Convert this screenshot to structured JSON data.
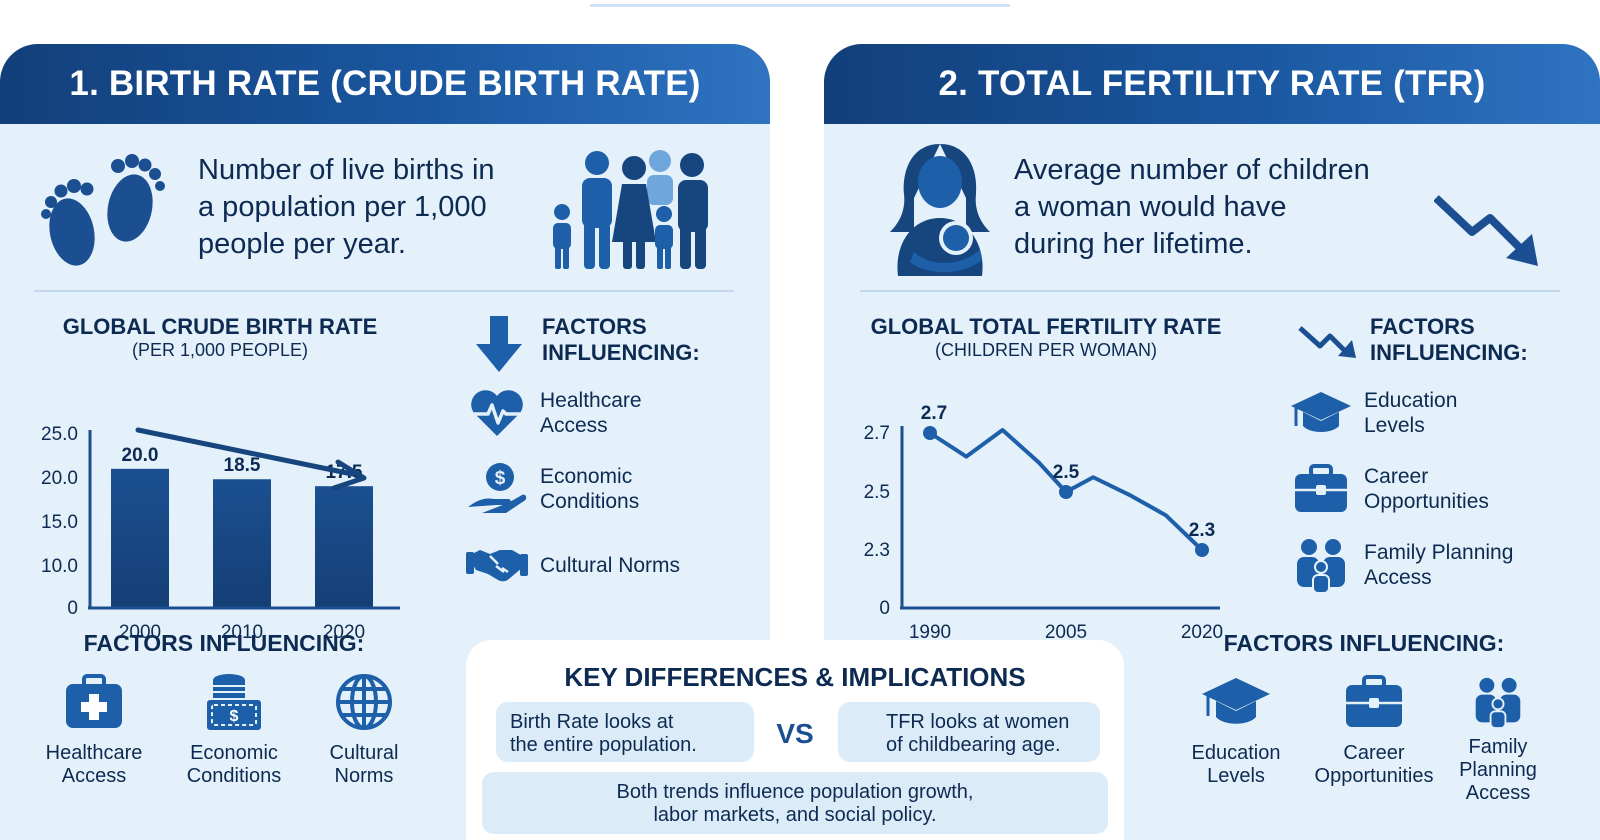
{
  "left": {
    "banner": "1. BIRTH RATE (CRUDE BIRTH RATE)",
    "definition": [
      "Number of live births in",
      "a population per 1,000",
      "people per year."
    ],
    "chart": {
      "title": "GLOBAL CRUDE BIRTH RATE",
      "subtitle": "(PER 1,000 PEOPLE)",
      "yticks": [
        "25.0",
        "20.0",
        "15.0",
        "10.0",
        "0"
      ]
    },
    "factors": {
      "heading": [
        "FACTORS",
        "INFLUENCING:"
      ],
      "items": [
        "Healthcare Access",
        "Economic Conditions",
        "Cultural Norms"
      ],
      "item_lines": [
        [
          "Healthcare",
          "Access"
        ],
        [
          "Economic",
          "Conditions"
        ],
        [
          "Cultural Norms"
        ]
      ]
    },
    "bottom": {
      "heading": "FACTORS INFLUENCING:",
      "items": [
        [
          "Healthcare",
          "Access"
        ],
        [
          "Economic",
          "Conditions"
        ],
        [
          "Cultural",
          "Norms"
        ]
      ]
    }
  },
  "right": {
    "banner": "2. TOTAL FERTILITY RATE (TFR)",
    "definition": [
      "Average number of children",
      "a woman would have",
      "during her lifetime."
    ],
    "chart": {
      "title": "GLOBAL TOTAL FERTILITY RATE",
      "subtitle": "(CHILDREN PER WOMAN)",
      "yticks": [
        "2.7",
        "2.5",
        "2.3",
        "0"
      ]
    },
    "factors": {
      "heading": [
        "FACTORS",
        "INFLUENCING:"
      ],
      "item_lines": [
        [
          "Education",
          "Levels"
        ],
        [
          "Career",
          "Opportunities"
        ],
        [
          "Family Planning",
          "Access"
        ]
      ]
    },
    "bottom": {
      "heading": "FACTORS INFLUENCING:",
      "items": [
        [
          "Education",
          "Levels"
        ],
        [
          "Career",
          "Opportunities"
        ],
        [
          "Family",
          "Planning",
          "Access"
        ]
      ]
    }
  },
  "key": {
    "title": "KEY DIFFERENCES & IMPLICATIONS",
    "birth_rate": [
      "Birth Rate looks at",
      "the entire population."
    ],
    "vs": "VS",
    "tfr": [
      "TFR looks at women",
      "of childbearing age."
    ],
    "conclusion": [
      "Both trends influence population growth,",
      "labor markets, and social policy."
    ]
  },
  "colors": {
    "navy": "#123f7a",
    "blue": "#1d5fa8",
    "panel": "#e4f0fa",
    "text": "#0d2b52"
  },
  "chart_data": [
    {
      "type": "bar",
      "title": "GLOBAL CRUDE BIRTH RATE",
      "subtitle": "(PER 1,000 PEOPLE)",
      "categories": [
        "2000",
        "2010",
        "2020"
      ],
      "values": [
        20.0,
        18.5,
        17.5
      ],
      "value_labels": [
        "20.0",
        "18.5",
        "17.5"
      ],
      "ylim": [
        0,
        25
      ],
      "trend": "down"
    },
    {
      "type": "line",
      "title": "GLOBAL TOTAL FERTILITY RATE",
      "subtitle": "(CHILDREN PER WOMAN)",
      "x_ticks": [
        "1990",
        "2005",
        "2020"
      ],
      "x": [
        1990,
        1994,
        1998,
        2002,
        2005,
        2008,
        2012,
        2016,
        2020
      ],
      "y": [
        2.7,
        2.62,
        2.71,
        2.6,
        2.5,
        2.55,
        2.49,
        2.42,
        2.3
      ],
      "labeled_points": [
        {
          "x": 1990,
          "y": 2.7,
          "label": "2.7"
        },
        {
          "x": 2005,
          "y": 2.5,
          "label": "2.5"
        },
        {
          "x": 2020,
          "y": 2.3,
          "label": "2.3"
        }
      ]
    }
  ]
}
